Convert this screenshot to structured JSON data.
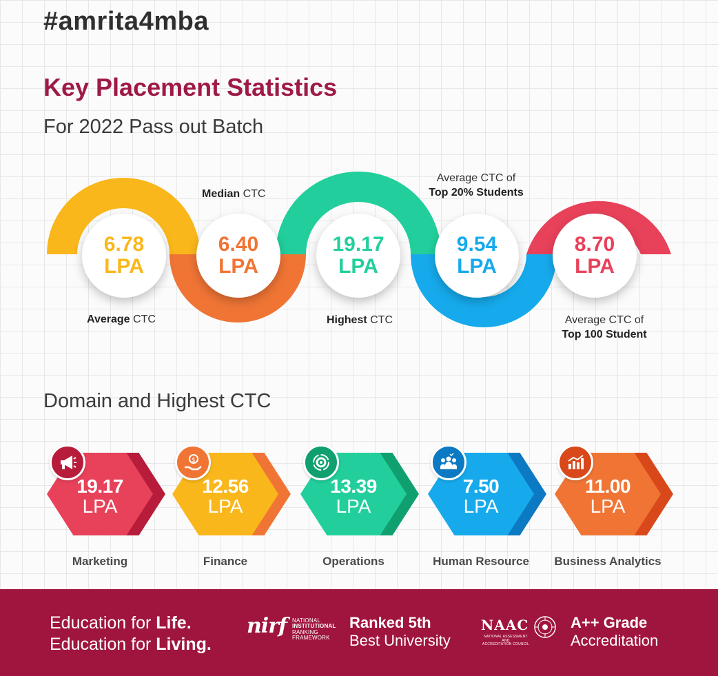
{
  "header": {
    "hashtag": "#amrita4mba",
    "title": "Key Placement Statistics",
    "subtitle": "For 2022 Pass out Batch"
  },
  "stats": [
    {
      "value": "6.78",
      "unit": "LPA",
      "label_bold": "Average",
      "label_rest": " CTC",
      "color": "#f9b71b"
    },
    {
      "value": "6.40",
      "unit": "LPA",
      "label_bold": "Median",
      "label_rest": " CTC",
      "color": "#f07535"
    },
    {
      "value": "19.17",
      "unit": "LPA",
      "label_bold": "Highest",
      "label_rest": " CTC",
      "color": "#22cf9c"
    },
    {
      "value": "9.54",
      "unit": "LPA",
      "label_top": "Average CTC of",
      "label_bold": "Top 20% Students",
      "color": "#16aaec"
    },
    {
      "value": "8.70",
      "unit": "LPA",
      "label_top": "Average CTC of",
      "label_bold": "Top 100 Student",
      "color": "#e8415a"
    }
  ],
  "domain_section": {
    "title": "Domain and Highest CTC",
    "items": [
      {
        "value": "19.17",
        "unit": "LPA",
        "label": "Marketing",
        "icon": "megaphone-icon",
        "color": "#e8415a",
        "shade": "#b71c3a"
      },
      {
        "value": "12.56",
        "unit": "LPA",
        "label": "Finance",
        "icon": "money-hand-icon",
        "color": "#f9b71b",
        "shade": "#f07535"
      },
      {
        "value": "13.39",
        "unit": "LPA",
        "label": "Operations",
        "icon": "gear-cycle-icon",
        "color": "#22cf9c",
        "shade": "#10a06f"
      },
      {
        "value": "7.50",
        "unit": "LPA",
        "label": "Human Resource",
        "icon": "people-icon",
        "color": "#16aaec",
        "shade": "#0b7ac2"
      },
      {
        "value": "11.00",
        "unit": "LPA",
        "label": "Business Analytics",
        "icon": "bar-chart-icon",
        "color": "#f07535",
        "shade": "#d9481a"
      }
    ]
  },
  "footer": {
    "tagline_line1_pre": "Education for ",
    "tagline_line1_bold": "Life.",
    "tagline_line2_pre": "Education for ",
    "tagline_line2_bold": "Living.",
    "nirf_word": "nirf",
    "nirf_lines": [
      "NATIONAL",
      "INSTITUTIONAL",
      "RANKING",
      "FRAMEWORK"
    ],
    "rank_bold": "Ranked 5th",
    "rank_rest": "Best University",
    "naac_word": "NAAC",
    "naac_lines": [
      "NATIONAL ASSESSMENT AND",
      "ACCREDITATION COUNCIL"
    ],
    "grade_bold": "A++ Grade",
    "grade_rest": "Accreditation",
    "background": "#a0153e"
  }
}
